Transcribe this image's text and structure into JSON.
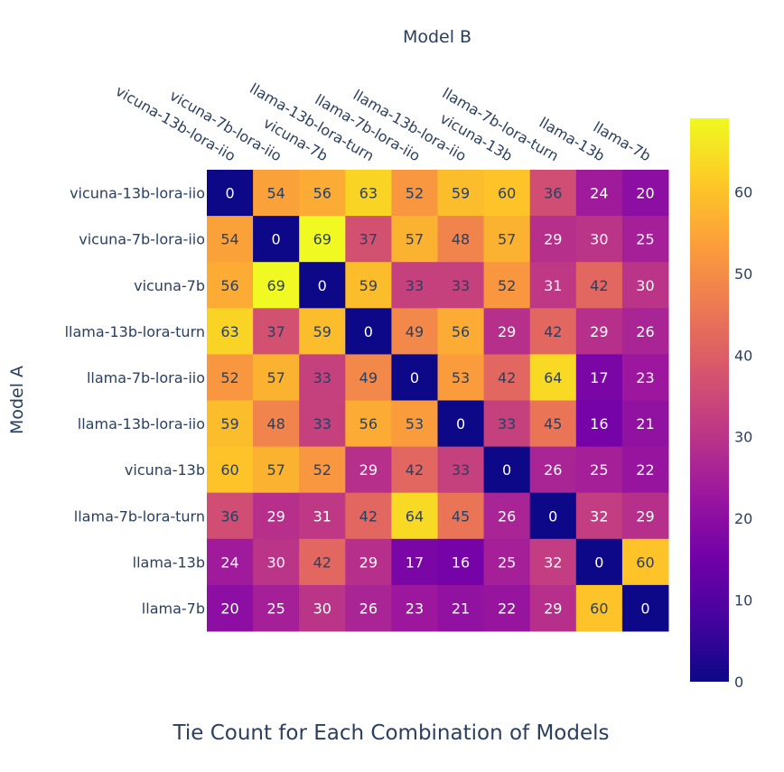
{
  "chart_data": {
    "type": "heatmap",
    "title": "Tie Count for Each Combination of Models",
    "xlabel": "Model B",
    "ylabel": "Model A",
    "x": [
      "vicuna-13b-lora-iio",
      "vicuna-7b-lora-iio",
      "vicuna-7b",
      "llama-13b-lora-turn",
      "llama-7b-lora-iio",
      "llama-13b-lora-iio",
      "vicuna-13b",
      "llama-7b-lora-turn",
      "llama-13b",
      "llama-7b"
    ],
    "y": [
      "vicuna-13b-lora-iio",
      "vicuna-7b-lora-iio",
      "vicuna-7b",
      "llama-13b-lora-turn",
      "llama-7b-lora-iio",
      "llama-13b-lora-iio",
      "vicuna-13b",
      "llama-7b-lora-turn",
      "llama-13b",
      "llama-7b"
    ],
    "z": [
      [
        0,
        54,
        56,
        63,
        52,
        59,
        60,
        36,
        24,
        20
      ],
      [
        54,
        0,
        69,
        37,
        57,
        48,
        57,
        29,
        30,
        25
      ],
      [
        56,
        69,
        0,
        59,
        33,
        33,
        52,
        31,
        42,
        30
      ],
      [
        63,
        37,
        59,
        0,
        49,
        56,
        29,
        42,
        29,
        26
      ],
      [
        52,
        57,
        33,
        49,
        0,
        53,
        42,
        64,
        17,
        23
      ],
      [
        59,
        48,
        33,
        56,
        53,
        0,
        33,
        45,
        16,
        21
      ],
      [
        60,
        57,
        52,
        29,
        42,
        33,
        0,
        26,
        25,
        22
      ],
      [
        36,
        29,
        31,
        42,
        64,
        45,
        26,
        0,
        32,
        29
      ],
      [
        24,
        30,
        42,
        29,
        17,
        16,
        25,
        32,
        0,
        60
      ],
      [
        20,
        25,
        30,
        26,
        23,
        21,
        22,
        29,
        60,
        0
      ]
    ],
    "zrange": [
      0,
      69
    ],
    "colorscale": "plasma",
    "colorbar_ticks": [
      0,
      10,
      20,
      30,
      40,
      50,
      60
    ],
    "x_axis_side": "top",
    "grid": false,
    "colors": {
      "text": "#2a3f5f",
      "background": "#ffffff",
      "scale": [
        "#0d0887",
        "#46039f",
        "#7201a8",
        "#9c179e",
        "#bd3786",
        "#d8576b",
        "#ed7953",
        "#fb9f3a",
        "#fdca26",
        "#f0f921"
      ]
    }
  }
}
